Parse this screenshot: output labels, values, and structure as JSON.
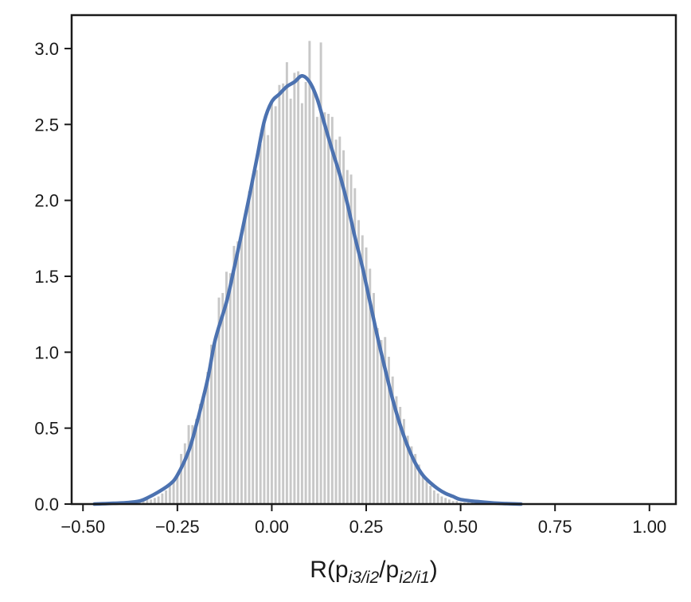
{
  "chart_data": {
    "type": "bar",
    "title": "",
    "xlabel_parts": {
      "prefix": "R(p",
      "sub1": "i3/i2",
      "mid": "/p",
      "sub2": "i2/i1",
      "suffix": ")"
    },
    "ylabel": "",
    "xlim": [
      -0.53,
      1.07
    ],
    "ylim": [
      0,
      3.22
    ],
    "xticks": [
      -0.5,
      -0.25,
      0.0,
      0.25,
      0.5,
      0.75,
      1.0
    ],
    "xtick_labels": [
      "−0.50",
      "−0.25",
      "0.00",
      "0.25",
      "0.50",
      "0.75",
      "1.00"
    ],
    "yticks": [
      0.0,
      0.5,
      1.0,
      1.5,
      2.0,
      2.5,
      3.0
    ],
    "ytick_labels": [
      "0.0",
      "0.5",
      "1.0",
      "1.5",
      "2.0",
      "2.5",
      "3.0"
    ],
    "grid": false,
    "histogram": {
      "color": "#c8c8c8",
      "bin_width": 0.01,
      "centers": [
        -0.43,
        -0.42,
        -0.41,
        -0.4,
        -0.39,
        -0.38,
        -0.37,
        -0.36,
        -0.35,
        -0.34,
        -0.33,
        -0.32,
        -0.31,
        -0.3,
        -0.29,
        -0.28,
        -0.27,
        -0.26,
        -0.25,
        -0.24,
        -0.23,
        -0.22,
        -0.21,
        -0.2,
        -0.19,
        -0.18,
        -0.17,
        -0.16,
        -0.15,
        -0.14,
        -0.13,
        -0.12,
        -0.11,
        -0.1,
        -0.09,
        -0.08,
        -0.07,
        -0.06,
        -0.05,
        -0.04,
        -0.03,
        -0.02,
        -0.01,
        0.0,
        0.01,
        0.02,
        0.03,
        0.04,
        0.05,
        0.06,
        0.07,
        0.08,
        0.09,
        0.1,
        0.11,
        0.12,
        0.13,
        0.14,
        0.15,
        0.16,
        0.17,
        0.18,
        0.19,
        0.2,
        0.21,
        0.22,
        0.23,
        0.24,
        0.25,
        0.26,
        0.27,
        0.28,
        0.29,
        0.3,
        0.31,
        0.32,
        0.33,
        0.34,
        0.35,
        0.36,
        0.37,
        0.38,
        0.39,
        0.4,
        0.41,
        0.42,
        0.43,
        0.44,
        0.45,
        0.46,
        0.47,
        0.48,
        0.49,
        0.5,
        0.51,
        0.52,
        0.53,
        0.54,
        0.55,
        0.56,
        0.57,
        0.58
      ],
      "values": [
        0.01,
        0.01,
        0.01,
        0.01,
        0.01,
        0.01,
        0.01,
        0.01,
        0.02,
        0.02,
        0.03,
        0.03,
        0.04,
        0.05,
        0.07,
        0.09,
        0.12,
        0.15,
        0.2,
        0.33,
        0.4,
        0.52,
        0.52,
        0.56,
        0.66,
        0.7,
        0.87,
        1.05,
        1.09,
        1.36,
        1.39,
        1.53,
        1.52,
        1.7,
        1.73,
        1.8,
        1.9,
        2.06,
        2.13,
        2.2,
        2.37,
        2.5,
        2.43,
        2.64,
        2.62,
        2.76,
        2.77,
        2.91,
        2.67,
        2.84,
        2.85,
        2.64,
        2.78,
        3.05,
        2.75,
        2.55,
        3.04,
        2.58,
        2.57,
        2.55,
        2.4,
        2.42,
        2.33,
        2.2,
        2.17,
        2.08,
        1.87,
        1.77,
        1.69,
        1.55,
        1.39,
        1.16,
        1.08,
        1.1,
        0.97,
        0.84,
        0.71,
        0.64,
        0.56,
        0.45,
        0.38,
        0.33,
        0.26,
        0.2,
        0.15,
        0.12,
        0.09,
        0.07,
        0.05,
        0.04,
        0.03,
        0.02,
        0.02,
        0.01,
        0.01,
        0.01,
        0.01,
        0.01,
        0.01,
        0.01
      ]
    },
    "kde": {
      "color": "#4c72b0",
      "x": [
        -0.47,
        -0.42,
        -0.38,
        -0.35,
        -0.33,
        -0.3,
        -0.27,
        -0.25,
        -0.22,
        -0.2,
        -0.17,
        -0.15,
        -0.12,
        -0.1,
        -0.08,
        -0.06,
        -0.04,
        -0.02,
        0.0,
        0.02,
        0.04,
        0.06,
        0.08,
        0.1,
        0.12,
        0.14,
        0.16,
        0.18,
        0.2,
        0.22,
        0.24,
        0.26,
        0.28,
        0.3,
        0.32,
        0.34,
        0.36,
        0.38,
        0.4,
        0.42,
        0.44,
        0.46,
        0.48,
        0.5,
        0.55,
        0.6,
        0.66
      ],
      "y": [
        0.0,
        0.005,
        0.01,
        0.02,
        0.04,
        0.08,
        0.13,
        0.19,
        0.35,
        0.52,
        0.82,
        1.08,
        1.33,
        1.55,
        1.78,
        2.02,
        2.27,
        2.52,
        2.65,
        2.7,
        2.75,
        2.78,
        2.82,
        2.78,
        2.67,
        2.5,
        2.33,
        2.17,
        1.98,
        1.76,
        1.56,
        1.33,
        1.1,
        0.89,
        0.69,
        0.52,
        0.38,
        0.27,
        0.19,
        0.14,
        0.1,
        0.07,
        0.05,
        0.03,
        0.015,
        0.005,
        0.0
      ]
    }
  }
}
